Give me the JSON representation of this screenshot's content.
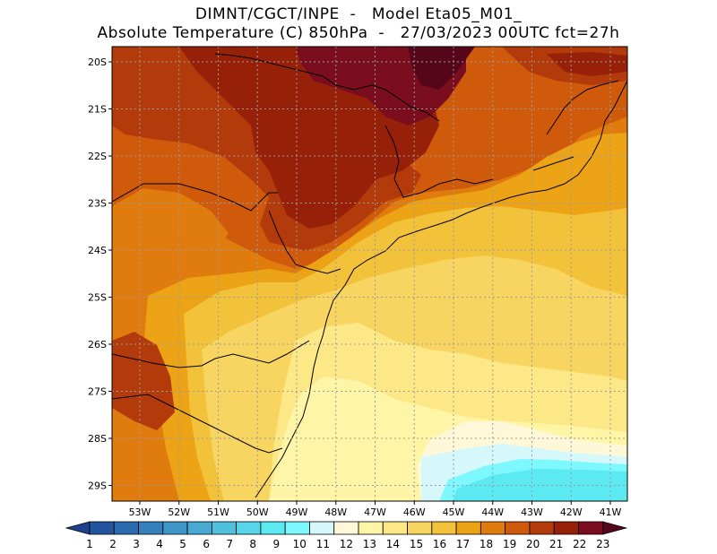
{
  "title_line1": "DIMNT/CGCT/INPE  -   Model Eta05_M01_",
  "title_line2": "Absolute Temperature (C) 850hPa  -   27/03/2023 00UTC fct=27h",
  "lat_labels": [
    "20S",
    "21S",
    "22S",
    "23S",
    "24S",
    "25S",
    "26S",
    "27S",
    "28S",
    "29S"
  ],
  "lon_labels": [
    "53W",
    "52W",
    "51W",
    "50W",
    "49W",
    "48W",
    "47W",
    "46W",
    "45W",
    "44W",
    "43W",
    "42W",
    "41W"
  ],
  "colorbar": {
    "labels": [
      "1",
      "2",
      "3",
      "4",
      "5",
      "6",
      "7",
      "8",
      "9",
      "10",
      "11",
      "12",
      "13",
      "14",
      "15",
      "16",
      "17",
      "18",
      "19",
      "20",
      "21",
      "22",
      "23"
    ],
    "colors": [
      "#1f3f8f",
      "#23559f",
      "#2a6aaf",
      "#3380bd",
      "#3d95c8",
      "#46aad3",
      "#4fc0de",
      "#58d6e9",
      "#5beaf1",
      "#7df8ff",
      "#d6f8fa",
      "#fff8d8",
      "#fff5a6",
      "#fde888",
      "#f8d560",
      "#f3c23b",
      "#eca316",
      "#e07c0e",
      "#cf5a0c",
      "#b33a0a",
      "#962008",
      "#7a0d1e",
      "#55061a"
    ]
  },
  "legend_title": "Absolute Temperature (C) 850hPa"
}
